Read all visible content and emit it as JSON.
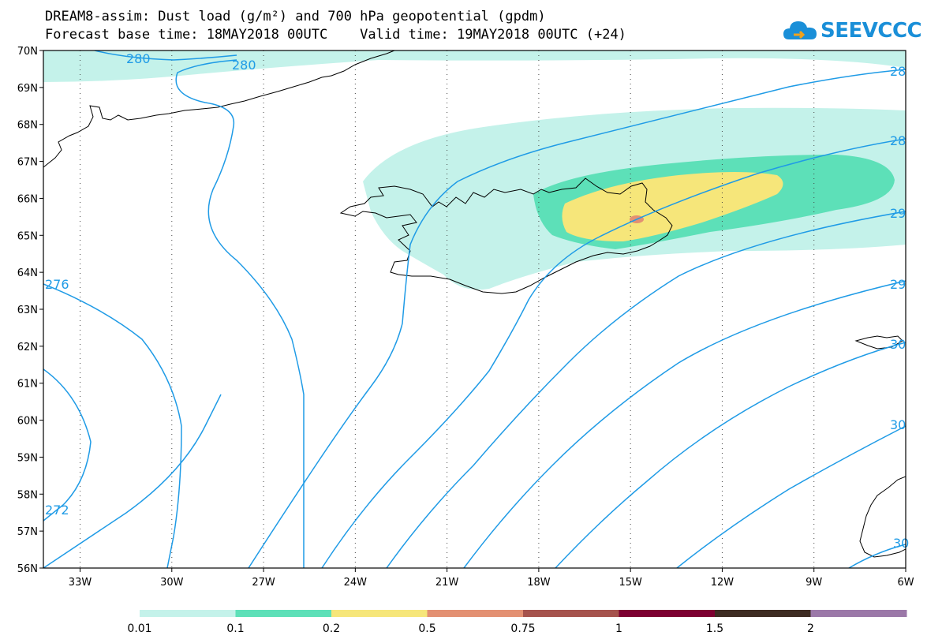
{
  "header": {
    "title_line1": "DREAM8-assim: Dust load (g/m²) and 700 hPa geopotential (gpdm)",
    "title_line2": "Forecast base time: 18MAY2018 00UTC    Valid time: 19MAY2018 00UTC (+24)"
  },
  "logo": {
    "text": "SEEVCCC",
    "icon": "cloud-icon",
    "color": "#1a8fd8"
  },
  "map": {
    "lat_labels": [
      "70N",
      "69N",
      "68N",
      "67N",
      "66N",
      "65N",
      "64N",
      "63N",
      "62N",
      "61N",
      "60N",
      "59N",
      "58N",
      "57N",
      "56N"
    ],
    "lon_labels": [
      "33W",
      "30W",
      "27W",
      "24W",
      "21W",
      "18W",
      "15W",
      "12W",
      "9W",
      "6W"
    ],
    "contour_color": "#1f9be6",
    "contour_labels": [
      "280",
      "280",
      "28",
      "28",
      "29",
      "29",
      "276",
      "30",
      "272",
      "30",
      "30"
    ]
  },
  "legend": {
    "labels": [
      "0.01",
      "0.1",
      "0.2",
      "0.5",
      "0.75",
      "1",
      "1.5",
      "2"
    ],
    "colors": [
      "#c4f2ea",
      "#5de0b8",
      "#f6e67a",
      "#e39072",
      "#a6534d",
      "#7d0031",
      "#3d2b22",
      "#9b78a8"
    ]
  }
}
